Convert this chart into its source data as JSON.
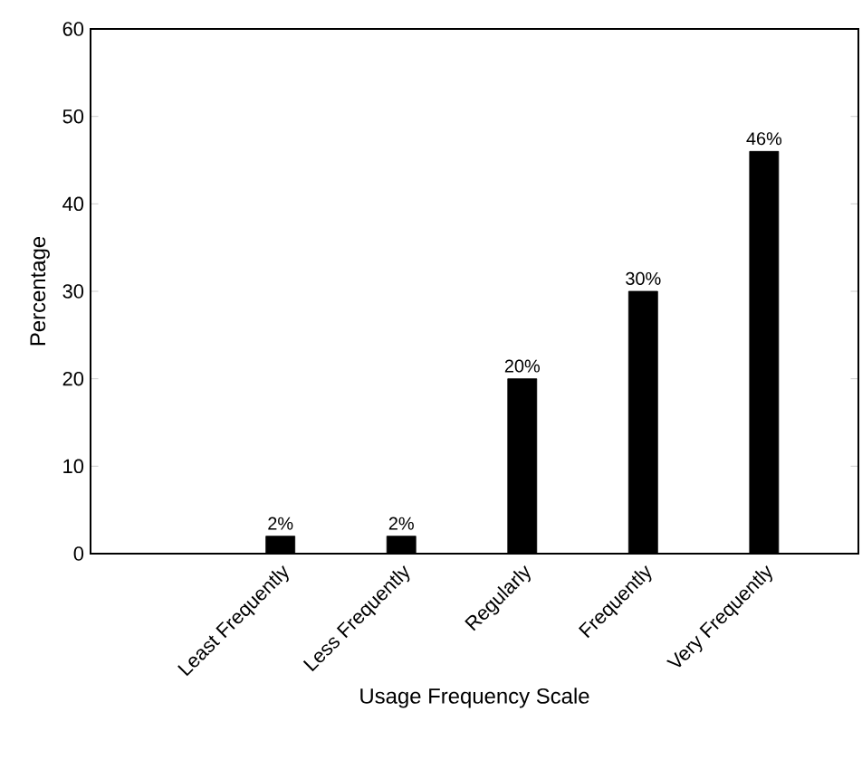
{
  "chart_data": {
    "type": "bar",
    "xlabel": "Usage Frequency Scale",
    "ylabel": "Percentage",
    "categories": [
      "Least Frequently",
      "Less Frequently",
      "Regularly",
      "Frequently",
      "Very Frequently"
    ],
    "values": [
      2,
      2,
      20,
      30,
      46
    ],
    "value_labels": [
      "2%",
      "2%",
      "20%",
      "30%",
      "46%"
    ],
    "color": "#000000",
    "ylim": [
      0,
      60
    ],
    "yticks": [
      0,
      10,
      20,
      30,
      40,
      50,
      60
    ],
    "grid": false
  }
}
